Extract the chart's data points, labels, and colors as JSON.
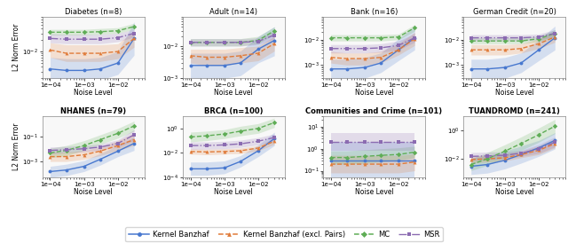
{
  "subplots": [
    {
      "title": "Diabetes (n=8)",
      "noise_levels": [
        0.0001,
        0.0003,
        0.001,
        0.003,
        0.01,
        0.03
      ],
      "kb": [
        0.0035,
        0.0032,
        0.0032,
        0.0035,
        0.005,
        0.022
      ],
      "kb_lo": [
        0.0018,
        0.0016,
        0.0016,
        0.0018,
        0.0025,
        0.008
      ],
      "kb_hi": [
        0.007,
        0.0065,
        0.0065,
        0.007,
        0.01,
        0.06
      ],
      "kbep": [
        0.011,
        0.009,
        0.009,
        0.009,
        0.01,
        0.022
      ],
      "kbep_lo": [
        0.007,
        0.0055,
        0.0055,
        0.0055,
        0.0065,
        0.013
      ],
      "kbep_hi": [
        0.017,
        0.015,
        0.015,
        0.015,
        0.016,
        0.035
      ],
      "mc": [
        0.032,
        0.032,
        0.032,
        0.033,
        0.035,
        0.045
      ],
      "mc_lo": [
        0.027,
        0.027,
        0.027,
        0.028,
        0.03,
        0.038
      ],
      "mc_hi": [
        0.038,
        0.038,
        0.038,
        0.04,
        0.042,
        0.055
      ],
      "msr": [
        0.022,
        0.021,
        0.021,
        0.021,
        0.023,
        0.03
      ],
      "msr_lo": [
        0.017,
        0.016,
        0.016,
        0.016,
        0.018,
        0.024
      ],
      "msr_hi": [
        0.029,
        0.028,
        0.028,
        0.028,
        0.03,
        0.038
      ],
      "ylim": [
        0.002,
        0.08
      ]
    },
    {
      "title": "Adult (n=14)",
      "noise_levels": [
        0.0001,
        0.0003,
        0.001,
        0.003,
        0.01,
        0.03
      ],
      "kb": [
        0.0025,
        0.0025,
        0.0025,
        0.003,
        0.008,
        0.015
      ],
      "kb_lo": [
        0.001,
        0.001,
        0.001,
        0.0012,
        0.003,
        0.005
      ],
      "kb_hi": [
        0.006,
        0.006,
        0.006,
        0.007,
        0.02,
        0.04
      ],
      "kbep": [
        0.005,
        0.0045,
        0.0045,
        0.005,
        0.006,
        0.012
      ],
      "kbep_lo": [
        0.003,
        0.0025,
        0.0025,
        0.003,
        0.0035,
        0.007
      ],
      "kbep_hi": [
        0.008,
        0.008,
        0.008,
        0.009,
        0.01,
        0.02
      ],
      "mc": [
        0.013,
        0.013,
        0.013,
        0.013,
        0.015,
        0.03
      ],
      "mc_lo": [
        0.01,
        0.01,
        0.01,
        0.01,
        0.012,
        0.023
      ],
      "mc_hi": [
        0.017,
        0.017,
        0.017,
        0.017,
        0.02,
        0.04
      ],
      "msr": [
        0.013,
        0.013,
        0.013,
        0.013,
        0.014,
        0.022
      ],
      "msr_lo": [
        0.01,
        0.01,
        0.01,
        0.01,
        0.011,
        0.017
      ],
      "msr_hi": [
        0.017,
        0.017,
        0.017,
        0.017,
        0.018,
        0.029
      ],
      "ylim": [
        0.001,
        0.08
      ]
    },
    {
      "title": "Bank (n=16)",
      "noise_levels": [
        0.0001,
        0.0003,
        0.001,
        0.003,
        0.01,
        0.03
      ],
      "kb": [
        0.0007,
        0.0007,
        0.0008,
        0.0012,
        0.004,
        0.012
      ],
      "kb_lo": [
        0.0003,
        0.0003,
        0.0003,
        0.0005,
        0.0015,
        0.004
      ],
      "kb_hi": [
        0.0017,
        0.0017,
        0.002,
        0.003,
        0.011,
        0.035
      ],
      "kbep": [
        0.002,
        0.0018,
        0.0018,
        0.002,
        0.004,
        0.011
      ],
      "kbep_lo": [
        0.0012,
        0.001,
        0.001,
        0.0012,
        0.0025,
        0.006
      ],
      "kbep_hi": [
        0.0035,
        0.003,
        0.003,
        0.0035,
        0.007,
        0.02
      ],
      "mc": [
        0.012,
        0.012,
        0.012,
        0.012,
        0.013,
        0.03
      ],
      "mc_lo": [
        0.009,
        0.009,
        0.009,
        0.009,
        0.01,
        0.022
      ],
      "mc_hi": [
        0.016,
        0.016,
        0.016,
        0.016,
        0.017,
        0.04
      ],
      "msr": [
        0.0045,
        0.0045,
        0.0045,
        0.0048,
        0.006,
        0.012
      ],
      "msr_lo": [
        0.003,
        0.003,
        0.003,
        0.0032,
        0.004,
        0.008
      ],
      "msr_hi": [
        0.0065,
        0.0065,
        0.0065,
        0.007,
        0.009,
        0.018
      ],
      "ylim": [
        0.0003,
        0.08
      ]
    },
    {
      "title": "German Credit (n=20)",
      "noise_levels": [
        0.0001,
        0.0003,
        0.001,
        0.003,
        0.01,
        0.03
      ],
      "kb": [
        0.0007,
        0.0007,
        0.0008,
        0.0012,
        0.004,
        0.012
      ],
      "kb_lo": [
        0.0003,
        0.0003,
        0.0003,
        0.0005,
        0.0015,
        0.004
      ],
      "kb_hi": [
        0.0017,
        0.0017,
        0.002,
        0.003,
        0.01,
        0.035
      ],
      "kbep": [
        0.004,
        0.004,
        0.004,
        0.0045,
        0.007,
        0.013
      ],
      "kbep_lo": [
        0.0025,
        0.0025,
        0.0025,
        0.003,
        0.0045,
        0.008
      ],
      "kbep_hi": [
        0.0065,
        0.0065,
        0.0065,
        0.007,
        0.011,
        0.02
      ],
      "mc": [
        0.009,
        0.009,
        0.009,
        0.009,
        0.011,
        0.018
      ],
      "mc_lo": [
        0.007,
        0.007,
        0.007,
        0.007,
        0.0085,
        0.013
      ],
      "mc_hi": [
        0.012,
        0.012,
        0.012,
        0.012,
        0.014,
        0.025
      ],
      "msr": [
        0.012,
        0.012,
        0.012,
        0.012,
        0.013,
        0.018
      ],
      "msr_lo": [
        0.009,
        0.009,
        0.009,
        0.009,
        0.01,
        0.013
      ],
      "msr_hi": [
        0.016,
        0.016,
        0.016,
        0.016,
        0.017,
        0.025
      ],
      "ylim": [
        0.0003,
        0.08
      ]
    },
    {
      "title": "NHANES (n=79)",
      "noise_levels": [
        0.0001,
        0.0003,
        0.001,
        0.003,
        0.01,
        0.03
      ],
      "kb": [
        0.00015,
        0.0002,
        0.0004,
        0.0015,
        0.007,
        0.03
      ],
      "kb_lo": [
        5e-05,
        7e-05,
        0.00015,
        0.0005,
        0.0025,
        0.008
      ],
      "kb_hi": [
        0.0004,
        0.0006,
        0.0012,
        0.0045,
        0.02,
        0.1
      ],
      "kbep": [
        0.0025,
        0.0025,
        0.0035,
        0.007,
        0.02,
        0.06
      ],
      "kbep_lo": [
        0.001,
        0.001,
        0.0015,
        0.003,
        0.008,
        0.02
      ],
      "kbep_hi": [
        0.006,
        0.006,
        0.008,
        0.015,
        0.05,
        0.2
      ],
      "mc": [
        0.005,
        0.008,
        0.02,
        0.06,
        0.2,
        0.8
      ],
      "mc_lo": [
        0.002,
        0.003,
        0.008,
        0.025,
        0.08,
        0.3
      ],
      "mc_hi": [
        0.012,
        0.02,
        0.05,
        0.15,
        0.5,
        2.0
      ],
      "msr": [
        0.008,
        0.009,
        0.011,
        0.015,
        0.03,
        0.15
      ],
      "msr_lo": [
        0.004,
        0.005,
        0.006,
        0.008,
        0.015,
        0.05
      ],
      "msr_hi": [
        0.015,
        0.017,
        0.02,
        0.027,
        0.06,
        0.4
      ],
      "ylim": [
        5e-05,
        5.0
      ]
    },
    {
      "title": "BRCA (n=100)",
      "noise_levels": [
        0.0001,
        0.0003,
        0.001,
        0.003,
        0.01,
        0.03
      ],
      "kb": [
        0.0005,
        0.0005,
        0.0006,
        0.002,
        0.015,
        0.15
      ],
      "kb_lo": [
        0.00015,
        0.00015,
        0.0002,
        0.0007,
        0.005,
        0.04
      ],
      "kb_hi": [
        0.0018,
        0.0018,
        0.0022,
        0.006,
        0.045,
        0.5
      ],
      "kbep": [
        0.013,
        0.012,
        0.013,
        0.015,
        0.025,
        0.09
      ],
      "kbep_lo": [
        0.008,
        0.007,
        0.008,
        0.009,
        0.015,
        0.05
      ],
      "kbep_hi": [
        0.022,
        0.02,
        0.022,
        0.025,
        0.04,
        0.16
      ],
      "mc": [
        0.2,
        0.25,
        0.35,
        0.6,
        1.0,
        3.0
      ],
      "mc_lo": [
        0.08,
        0.1,
        0.15,
        0.25,
        0.4,
        1.2
      ],
      "mc_hi": [
        0.5,
        0.6,
        0.8,
        1.5,
        2.5,
        7.0
      ],
      "msr": [
        0.04,
        0.04,
        0.045,
        0.055,
        0.09,
        0.18
      ],
      "msr_lo": [
        0.02,
        0.02,
        0.022,
        0.028,
        0.045,
        0.09
      ],
      "msr_hi": [
        0.08,
        0.08,
        0.09,
        0.11,
        0.18,
        0.35
      ],
      "ylim": [
        0.0001,
        10.0
      ]
    },
    {
      "title": "Communities and Crime (n=101)",
      "noise_levels": [
        0.0001,
        0.0003,
        0.001,
        0.003,
        0.01,
        0.03
      ],
      "kb": [
        0.3,
        0.3,
        0.3,
        0.3,
        0.3,
        0.3
      ],
      "kb_lo": [
        0.05,
        0.05,
        0.05,
        0.05,
        0.05,
        0.05
      ],
      "kb_hi": [
        2.0,
        2.0,
        2.0,
        2.0,
        2.0,
        2.0
      ],
      "kbep": [
        0.2,
        0.2,
        0.2,
        0.2,
        0.2,
        0.25
      ],
      "kbep_lo": [
        0.08,
        0.08,
        0.08,
        0.08,
        0.08,
        0.1
      ],
      "kbep_hi": [
        0.5,
        0.5,
        0.5,
        0.5,
        0.5,
        0.6
      ],
      "mc": [
        0.4,
        0.4,
        0.45,
        0.5,
        0.55,
        0.7
      ],
      "mc_lo": [
        0.2,
        0.2,
        0.22,
        0.25,
        0.3,
        0.4
      ],
      "mc_hi": [
        0.8,
        0.8,
        0.9,
        1.0,
        1.1,
        1.3
      ],
      "msr": [
        2.0,
        2.0,
        2.0,
        2.0,
        2.0,
        2.0
      ],
      "msr_lo": [
        0.8,
        0.8,
        0.8,
        0.8,
        0.8,
        0.8
      ],
      "msr_hi": [
        5.0,
        5.0,
        5.0,
        5.0,
        5.0,
        5.0
      ],
      "ylim": [
        0.05,
        30.0
      ]
    },
    {
      "title": "TUANDROMD (n=241)",
      "noise_levels": [
        0.0001,
        0.0003,
        0.001,
        0.003,
        0.01,
        0.03
      ],
      "kb": [
        0.003,
        0.004,
        0.008,
        0.02,
        0.06,
        0.2
      ],
      "kb_lo": [
        0.0008,
        0.001,
        0.002,
        0.005,
        0.015,
        0.05
      ],
      "kb_hi": [
        0.012,
        0.016,
        0.035,
        0.08,
        0.2,
        0.7
      ],
      "kbep": [
        0.009,
        0.01,
        0.012,
        0.02,
        0.04,
        0.12
      ],
      "kbep_lo": [
        0.005,
        0.006,
        0.007,
        0.012,
        0.02,
        0.06
      ],
      "kbep_hi": [
        0.016,
        0.018,
        0.022,
        0.035,
        0.08,
        0.25
      ],
      "mc": [
        0.004,
        0.01,
        0.035,
        0.12,
        0.5,
        2.0
      ],
      "mc_lo": [
        0.0015,
        0.0035,
        0.012,
        0.04,
        0.15,
        0.6
      ],
      "mc_hi": [
        0.01,
        0.028,
        0.1,
        0.35,
        1.5,
        6.0
      ],
      "msr": [
        0.015,
        0.016,
        0.018,
        0.025,
        0.05,
        0.15
      ],
      "msr_lo": [
        0.008,
        0.009,
        0.01,
        0.015,
        0.025,
        0.07
      ],
      "msr_hi": [
        0.028,
        0.03,
        0.032,
        0.04,
        0.1,
        0.35
      ],
      "ylim": [
        0.0005,
        10.0
      ]
    }
  ],
  "colors": {
    "kb": "#4878cf",
    "kbep": "#e07b39",
    "mc": "#5fad56",
    "msr": "#8b6bb1"
  },
  "legend_labels": [
    "Kernel Banzhaf",
    "Kernel Banzhaf (excl. Pairs)",
    "MC",
    "MSR"
  ],
  "xlabel": "Noise Level",
  "ylabel": "L2 Norm Error",
  "bg_color": "#f8f8f8"
}
